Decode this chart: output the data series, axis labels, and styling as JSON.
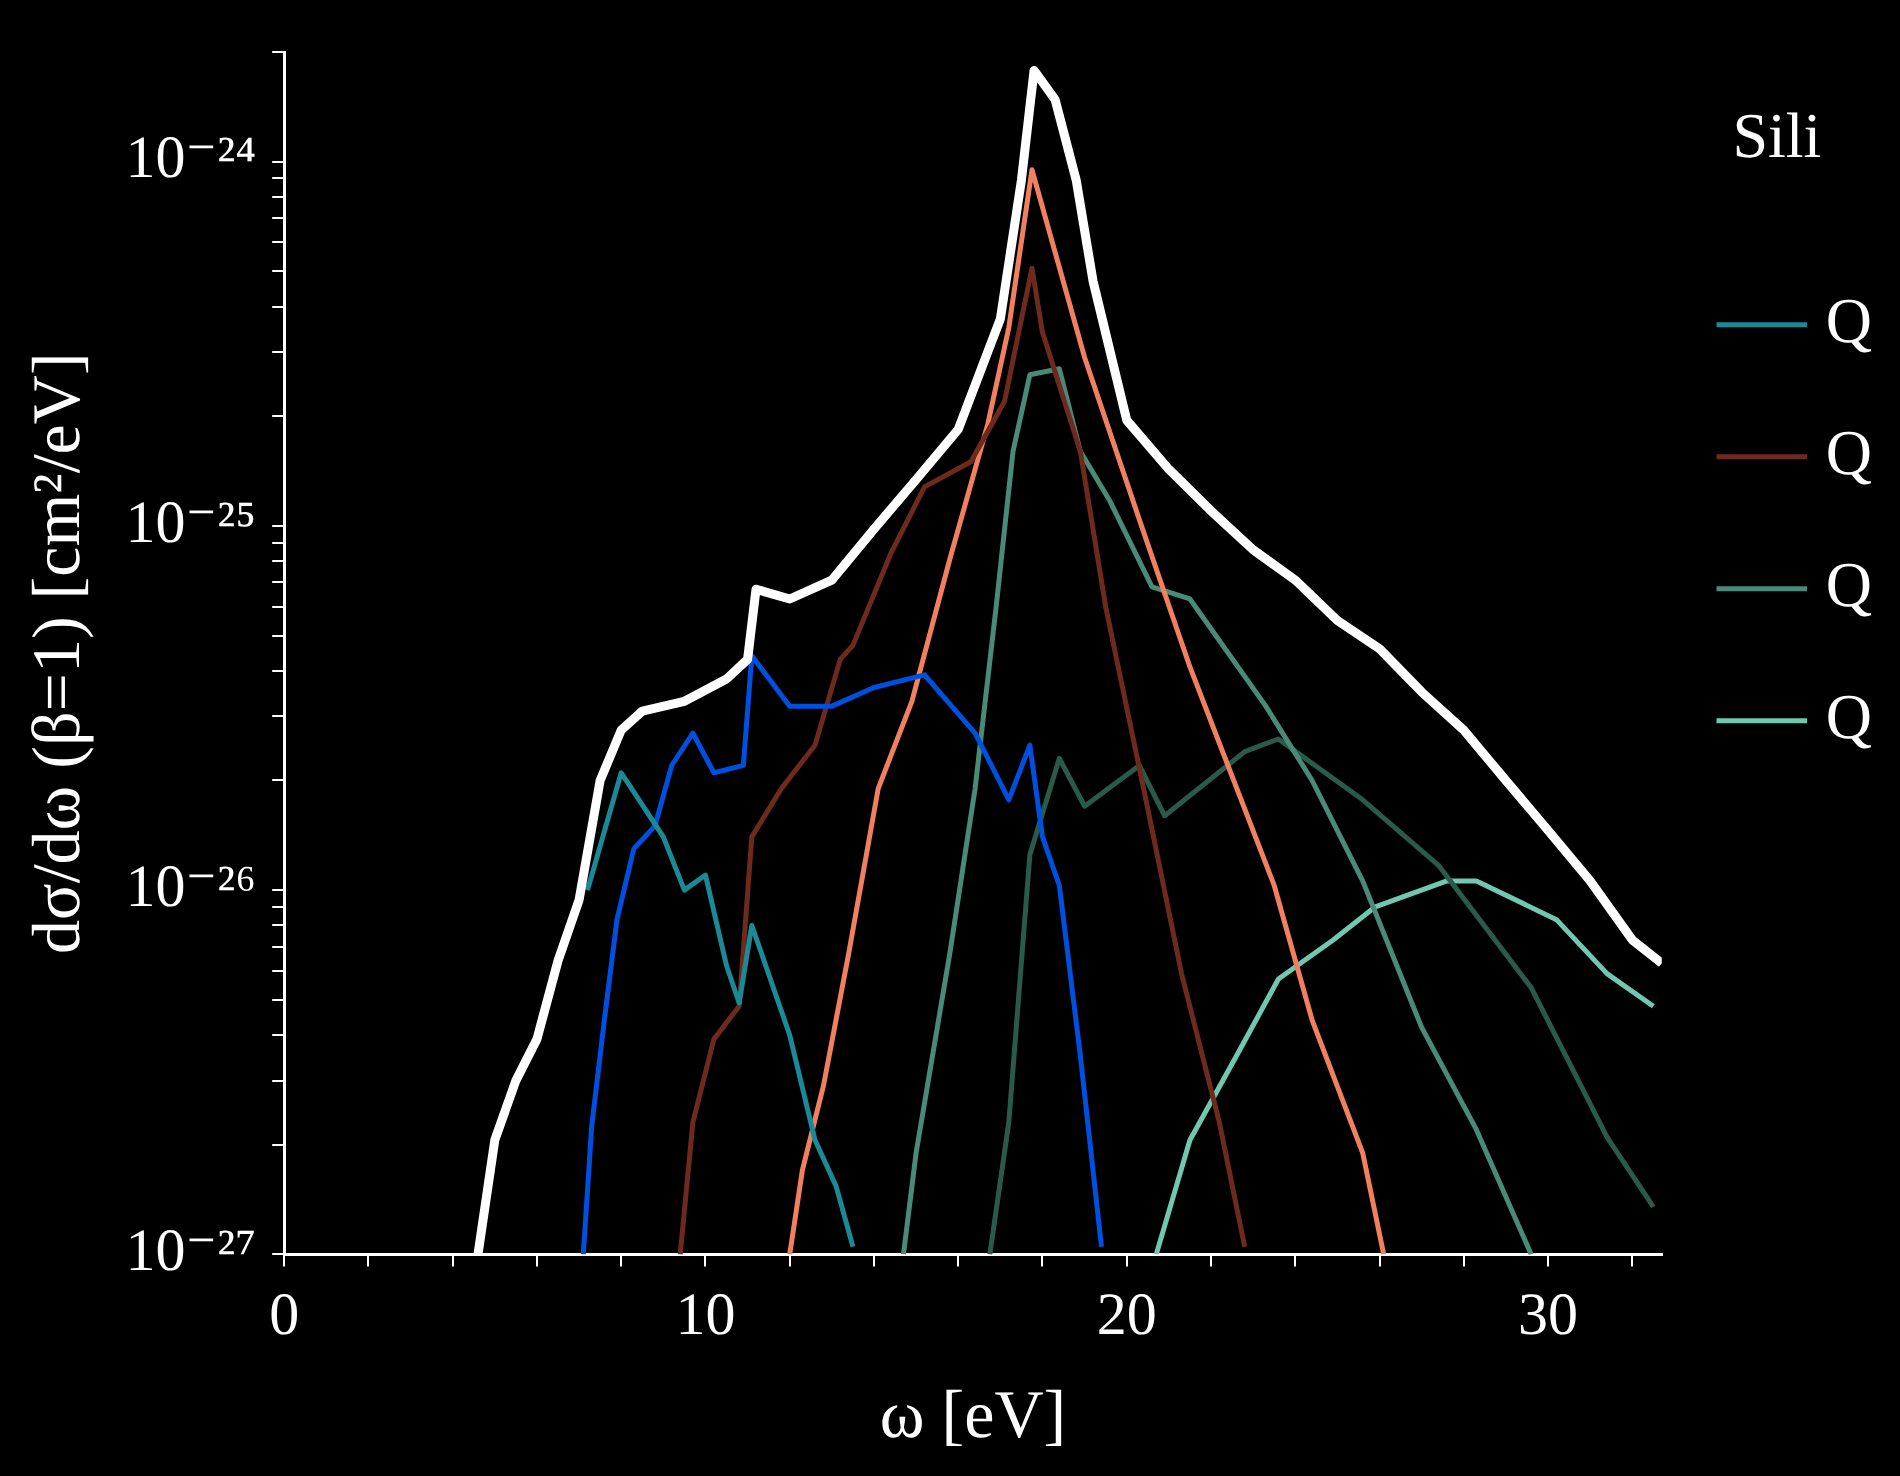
{
  "chart_data": {
    "type": "line",
    "xlabel": "ω [eV]",
    "ylabel": "dσ/dω (β=1) [cm²/eV]",
    "legend_title": "Sili",
    "legend": "right",
    "grid": false,
    "log": "y",
    "xlim": [
      0,
      32.7
    ],
    "xticks": [
      0,
      {
        "value": 2,
        "label": null
      },
      {
        "value": 4,
        "label": null
      },
      {
        "value": 6,
        "label": null
      },
      {
        "value": 8,
        "label": null
      },
      10,
      {
        "value": 12,
        "label": null
      },
      {
        "value": 14,
        "label": null
      },
      {
        "value": 16,
        "label": null
      },
      {
        "value": 18,
        "label": null
      },
      20,
      {
        "value": 22,
        "label": null
      },
      {
        "value": 24,
        "label": null
      },
      {
        "value": 26,
        "label": null
      },
      {
        "value": 28,
        "label": null
      },
      30,
      {
        "value": 32,
        "label": null
      }
    ],
    "ylim": [
      1e-27,
      2e-24
    ],
    "yticks": [
      {
        "value": 1e-27,
        "label": "10⁻²⁷"
      },
      {
        "value": 2e-27,
        "label": null
      },
      {
        "value": 3e-27,
        "label": null
      },
      {
        "value": 4e-27,
        "label": null
      },
      {
        "value": 5e-27,
        "label": null
      },
      {
        "value": 6e-27,
        "label": null
      },
      {
        "value": 7e-27,
        "label": null
      },
      {
        "value": 8e-27,
        "label": null
      },
      {
        "value": 9e-27,
        "label": null
      },
      {
        "value": 1e-26,
        "label": "10⁻²⁶"
      },
      {
        "value": 2e-26,
        "label": null
      },
      {
        "value": 3e-26,
        "label": null
      },
      {
        "value": 4e-26,
        "label": null
      },
      {
        "value": 5e-26,
        "label": null
      },
      {
        "value": 6e-26,
        "label": null
      },
      {
        "value": 7e-26,
        "label": null
      },
      {
        "value": 8e-26,
        "label": null
      },
      {
        "value": 9e-26,
        "label": null
      },
      {
        "value": 1e-25,
        "label": "10⁻²⁵"
      },
      {
        "value": 2e-25,
        "label": null
      },
      {
        "value": 3e-25,
        "label": null
      },
      {
        "value": 4e-25,
        "label": null
      },
      {
        "value": 5e-25,
        "label": null
      },
      {
        "value": 6e-25,
        "label": null
      },
      {
        "value": 7e-25,
        "label": null
      },
      {
        "value": 8e-25,
        "label": null
      },
      {
        "value": 9e-25,
        "label": null
      },
      {
        "value": 1e-24,
        "label": "10⁻²⁴"
      },
      {
        "value": 2e-24,
        "label": null
      }
    ],
    "series": [
      {
        "color": "#ffffff",
        "x": [
          4.6,
          5.0,
          5.5,
          6.0,
          6.5,
          7.0,
          7.5,
          8.0,
          8.5,
          9.5,
          10.5,
          11.0,
          11.2,
          12,
          13,
          14,
          15,
          16,
          17,
          17.5,
          17.8,
          18.3,
          18.8,
          19.2,
          20,
          21,
          22,
          23,
          24,
          25,
          26,
          27,
          28,
          29,
          30,
          31,
          32,
          32.7
        ],
        "values": [
          1e-27,
          2.06e-27,
          3e-27,
          3.9e-27,
          6.4e-27,
          9.4e-27,
          2e-26,
          2.75e-26,
          3.1e-26,
          3.3e-26,
          3.8e-26,
          4.3e-26,
          6.7e-26,
          6.3e-26,
          7.1e-26,
          9.8e-26,
          1.34e-25,
          1.84e-25,
          3.7e-25,
          8.9e-25,
          1.78e-24,
          1.48e-24,
          8.9e-25,
          4.7e-25,
          1.95e-25,
          1.43e-25,
          1.1e-25,
          8.6e-26,
          7.1e-26,
          5.5e-26,
          4.6e-26,
          3.5e-26,
          2.75e-26,
          2e-26,
          1.46e-26,
          1.06e-26,
          7.3e-27,
          6.3e-27
        ]
      },
      {
        "name": "Q",
        "color": "#1a8a96",
        "x": [
          7.2,
          8.0,
          9.0,
          9.5,
          10.0,
          10.5,
          10.8,
          11.1,
          12.0,
          12.6,
          13.1,
          13.5
        ],
        "values": [
          1e-26,
          2.1e-26,
          1.4e-26,
          1e-26,
          1.1e-26,
          6.2e-27,
          4.9e-27,
          8e-27,
          4e-27,
          2.06e-27,
          1.54e-27,
          1.05e-27
        ]
      },
      {
        "color": "#0050e0",
        "x": [
          7.1,
          7.3,
          7.6,
          7.9,
          8.3,
          8.8,
          9.2,
          9.7,
          10.2,
          10.9,
          11.1,
          12,
          13,
          14,
          15.2,
          16.4,
          17.2,
          17.7,
          18.0,
          18.4,
          18.9,
          19.4
        ],
        "values": [
          1e-27,
          2.25e-27,
          4.4e-27,
          8.3e-27,
          1.3e-26,
          1.5e-26,
          2.2e-26,
          2.7e-26,
          2.1e-26,
          2.2e-26,
          4.4e-26,
          3.2e-26,
          3.2e-26,
          3.6e-26,
          3.9e-26,
          2.7e-26,
          1.77e-26,
          2.5e-26,
          1.4e-26,
          1.03e-26,
          3.5e-27,
          1.05e-27
        ]
      },
      {
        "name": "Q",
        "color": "#6e2a1c",
        "x": [
          9.4,
          9.7,
          10.2,
          10.8,
          11.1,
          11.8,
          12.6,
          13.2,
          13.5,
          14.4,
          15.2,
          16.3,
          17.1,
          17.75,
          18.0,
          18.9,
          19.5,
          20.4,
          21.3,
          22.2,
          22.8
        ],
        "values": [
          1e-27,
          2.3e-27,
          3.9e-27,
          4.8e-27,
          1.4e-26,
          1.9e-26,
          2.5e-26,
          4.3e-26,
          4.7e-26,
          8.4e-26,
          1.28e-25,
          1.5e-25,
          2.2e-25,
          5.1e-25,
          3.4e-25,
          1.6e-25,
          6e-26,
          1.9e-26,
          5.9e-27,
          2.3e-27,
          1.05e-27
        ]
      },
      {
        "color": "#f08060",
        "x": [
          12.0,
          12.3,
          12.8,
          13.4,
          14.1,
          14.9,
          15.8,
          16.7,
          17.2,
          17.75,
          19.0,
          20.3,
          21.5,
          23.5,
          24.4,
          25.6,
          26.1
        ],
        "values": [
          1e-27,
          1.7e-27,
          2.9e-27,
          6.7e-27,
          1.9e-26,
          3.3e-26,
          8.1e-26,
          1.9e-25,
          3.5e-25,
          9.5e-25,
          2.9e-25,
          1.04e-25,
          4.1e-26,
          1.03e-26,
          4.4e-27,
          1.9e-27,
          1e-27
        ]
      },
      {
        "name": "Q",
        "color": "#4a8a78",
        "x": [
          14.7,
          15.0,
          15.8,
          16.4,
          16.9,
          17.3,
          17.7,
          18.4,
          18.9,
          19.6,
          20.6,
          21.5,
          23.3,
          24.4,
          25.6,
          27.0,
          28.3,
          29.6
        ],
        "values": [
          1e-27,
          1.9e-27,
          6.7e-27,
          1.9e-26,
          6e-26,
          1.6e-25,
          2.6e-25,
          2.7e-25,
          1.6e-25,
          1.17e-25,
          6.8e-26,
          6.3e-26,
          3.2e-26,
          2e-26,
          1.06e-26,
          4.2e-27,
          2.2e-27,
          1e-27
        ]
      },
      {
        "color": "#2a5a4c",
        "x": [
          16.75,
          17.2,
          17.7,
          18.4,
          19.0,
          20.3,
          20.9,
          22.8,
          23.6,
          25.6,
          27.4,
          29.6,
          31.4,
          32.5
        ],
        "values": [
          1e-27,
          2.3e-27,
          1.25e-26,
          2.3e-26,
          1.7e-26,
          2.2e-26,
          1.6e-26,
          2.4e-26,
          2.6e-26,
          1.77e-26,
          1.17e-26,
          5.4e-27,
          2.1e-27,
          1.35e-27
        ]
      },
      {
        "name": "Q",
        "color": "#70c8b0",
        "x": [
          20.7,
          21.5,
          22.6,
          23.6,
          24.9,
          25.9,
          27.6,
          28.3,
          30.2,
          31.4,
          32.5
        ],
        "values": [
          1e-27,
          2.06e-27,
          3.5e-27,
          5.7e-27,
          7.3e-27,
          9e-27,
          1.06e-26,
          1.06e-26,
          8.3e-27,
          5.9e-27,
          4.8e-27
        ]
      }
    ]
  }
}
